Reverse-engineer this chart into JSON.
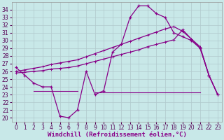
{
  "xlabel": "Windchill (Refroidissement éolien,°C)",
  "bg_color": "#c8e8e8",
  "grid_color": "#b0c8cc",
  "line_color": "#880088",
  "x_hours": [
    0,
    1,
    2,
    3,
    4,
    5,
    6,
    7,
    8,
    9,
    10,
    11,
    12,
    13,
    14,
    15,
    16,
    17,
    18,
    19,
    20,
    21,
    22,
    23
  ],
  "windchill": [
    26.5,
    25.5,
    24.5,
    24.0,
    24.0,
    20.2,
    20.0,
    21.0,
    26.0,
    23.0,
    23.5,
    28.5,
    29.5,
    33.0,
    34.5,
    34.5,
    33.5,
    33.0,
    31.0,
    30.5,
    30.0,
    29.0,
    25.5,
    23.0
  ],
  "diag_upper": [
    26.0,
    26.2,
    26.4,
    26.6,
    26.9,
    27.1,
    27.3,
    27.5,
    27.9,
    28.3,
    28.7,
    29.1,
    29.5,
    29.9,
    30.3,
    30.7,
    31.1,
    31.5,
    31.8,
    31.2,
    30.2,
    29.2,
    25.5,
    23.0
  ],
  "diag_lower": [
    25.8,
    25.9,
    26.0,
    26.1,
    26.3,
    26.4,
    26.5,
    26.7,
    27.0,
    27.3,
    27.6,
    27.9,
    28.2,
    28.5,
    28.8,
    29.2,
    29.5,
    29.8,
    30.1,
    31.4,
    30.2,
    29.0,
    25.5,
    23.0
  ],
  "flat_line_x": [
    2,
    7
  ],
  "flat_line_val": 23.5,
  "flat_line2_x": [
    9,
    21
  ],
  "flat_line2_val": 23.3,
  "ylim": [
    19.5,
    35.0
  ],
  "yticks": [
    20,
    21,
    22,
    23,
    24,
    25,
    26,
    27,
    28,
    29,
    30,
    31,
    32,
    33,
    34
  ],
  "xticks": [
    0,
    1,
    2,
    3,
    4,
    5,
    6,
    7,
    8,
    9,
    10,
    11,
    12,
    13,
    14,
    15,
    16,
    17,
    18,
    19,
    20,
    21,
    22,
    23
  ],
  "tick_fontsize": 5.5,
  "label_fontsize": 6.5
}
